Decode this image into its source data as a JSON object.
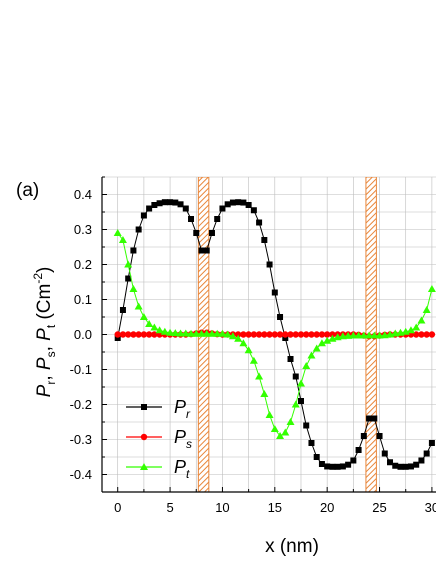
{
  "panel_label": "(a)",
  "chart_data": {
    "type": "line",
    "xlabel": "x (nm)",
    "ylabel": "P_r, P_s, P_t (Cm^-2)",
    "xlim": [
      -1.5,
      30.2
    ],
    "ylim": [
      -0.45,
      0.45
    ],
    "x_ticks": [
      0,
      5,
      10,
      15,
      20,
      25,
      30
    ],
    "x_tick_labels": [
      "0",
      "5",
      "10",
      "15",
      "20",
      "25",
      "30"
    ],
    "y_ticks": [
      -0.4,
      -0.3,
      -0.2,
      -0.1,
      0.0,
      0.1,
      0.2,
      0.3,
      0.4
    ],
    "y_tick_labels": [
      "-0.4",
      "-0.3",
      "-0.2",
      "-0.1",
      "0.0",
      "0.1",
      "0.2",
      "0.3",
      "0.4"
    ],
    "grid": true,
    "legend_position": "bottom-left",
    "highlight_bands": [
      [
        7.7,
        8.7
      ],
      [
        23.7,
        24.7
      ]
    ],
    "series": [
      {
        "name": "P_r",
        "color": "#000000",
        "marker": "square",
        "x": [
          0,
          0.5,
          1,
          1.5,
          2,
          2.5,
          3,
          3.5,
          4,
          4.5,
          5,
          5.5,
          6,
          6.5,
          7,
          7.5,
          8,
          8.5,
          9,
          9.5,
          10,
          10.5,
          11,
          11.5,
          12,
          12.5,
          13,
          13.5,
          14,
          14.5,
          15,
          15.5,
          16,
          16.5,
          17,
          17.5,
          18,
          18.5,
          19,
          19.5,
          20,
          20.5,
          21,
          21.5,
          22,
          22.5,
          23,
          23.5,
          24,
          24.5,
          25,
          25.5,
          26,
          26.5,
          27,
          27.5,
          28,
          28.5,
          29,
          29.5,
          30
        ],
        "y": [
          -0.01,
          0.07,
          0.16,
          0.24,
          0.3,
          0.34,
          0.36,
          0.37,
          0.375,
          0.378,
          0.378,
          0.377,
          0.372,
          0.36,
          0.33,
          0.29,
          0.24,
          0.24,
          0.29,
          0.33,
          0.36,
          0.372,
          0.377,
          0.378,
          0.377,
          0.37,
          0.355,
          0.32,
          0.27,
          0.2,
          0.12,
          0.05,
          -0.01,
          -0.07,
          -0.12,
          -0.19,
          -0.26,
          -0.31,
          -0.35,
          -0.37,
          -0.377,
          -0.378,
          -0.378,
          -0.377,
          -0.372,
          -0.36,
          -0.33,
          -0.29,
          -0.24,
          -0.24,
          -0.29,
          -0.34,
          -0.365,
          -0.375,
          -0.378,
          -0.378,
          -0.377,
          -0.372,
          -0.36,
          -0.34,
          -0.31
        ]
      },
      {
        "name": "P_s",
        "color": "#ff0000",
        "marker": "circle",
        "x": [
          0,
          0.5,
          1,
          1.5,
          2,
          2.5,
          3,
          3.5,
          4,
          4.5,
          5,
          5.5,
          6,
          6.5,
          7,
          7.5,
          8,
          8.5,
          9,
          9.5,
          10,
          10.5,
          11,
          11.5,
          12,
          12.5,
          13,
          13.5,
          14,
          14.5,
          15,
          15.5,
          16,
          16.5,
          17,
          17.5,
          18,
          18.5,
          19,
          19.5,
          20,
          20.5,
          21,
          21.5,
          22,
          22.5,
          23,
          23.5,
          24,
          24.5,
          25,
          25.5,
          26,
          26.5,
          27,
          27.5,
          28,
          28.5,
          29,
          29.5,
          30
        ],
        "y": [
          0.0,
          0.0,
          0.0,
          0.0,
          0.0,
          0.0,
          0.0,
          0.0,
          0.0,
          0.0,
          0.0,
          0.0,
          0.0,
          0.0,
          0.001,
          0.003,
          0.005,
          0.005,
          0.003,
          0.001,
          0.0,
          0.0,
          0.0,
          0.0,
          0.0,
          0.0,
          0.0,
          0.0,
          0.0,
          0.0,
          0.0,
          0.0,
          0.0,
          0.0,
          0.0,
          0.0,
          0.0,
          0.0,
          0.0,
          0.0,
          0.0,
          0.0,
          0.0,
          0.0,
          0.0,
          0.0,
          -0.001,
          -0.003,
          -0.005,
          -0.005,
          -0.003,
          -0.001,
          0.0,
          0.0,
          0.0,
          0.0,
          0.0,
          0.0,
          0.0,
          0.0,
          0.0
        ]
      },
      {
        "name": "P_t",
        "color": "#33ff00",
        "marker": "triangle",
        "x": [
          0,
          0.5,
          1,
          1.5,
          2,
          2.5,
          3,
          3.5,
          4,
          4.5,
          5,
          5.5,
          6,
          6.5,
          7,
          7.5,
          8,
          8.5,
          9,
          9.5,
          10,
          10.5,
          11,
          11.5,
          12,
          12.5,
          13,
          13.5,
          14,
          14.5,
          15,
          15.5,
          16,
          16.5,
          17,
          17.5,
          18,
          18.5,
          19,
          19.5,
          20,
          20.5,
          21,
          21.5,
          22,
          22.5,
          23,
          23.5,
          24,
          24.5,
          25,
          25.5,
          26,
          26.5,
          27,
          27.5,
          28,
          28.5,
          29,
          29.5,
          30
        ],
        "y": [
          0.29,
          0.27,
          0.2,
          0.13,
          0.08,
          0.05,
          0.03,
          0.02,
          0.012,
          0.008,
          0.005,
          0.004,
          0.003,
          0.003,
          0.002,
          0.002,
          0.002,
          0.002,
          0.002,
          0.002,
          0.002,
          0.0,
          -0.005,
          -0.012,
          -0.025,
          -0.045,
          -0.075,
          -0.12,
          -0.17,
          -0.23,
          -0.27,
          -0.29,
          -0.28,
          -0.25,
          -0.2,
          -0.14,
          -0.09,
          -0.06,
          -0.04,
          -0.025,
          -0.018,
          -0.012,
          -0.008,
          -0.005,
          -0.004,
          -0.003,
          -0.003,
          -0.003,
          -0.003,
          -0.003,
          -0.003,
          -0.002,
          0.0,
          0.003,
          0.005,
          0.008,
          0.012,
          0.02,
          0.04,
          0.07,
          0.13
        ]
      }
    ]
  }
}
